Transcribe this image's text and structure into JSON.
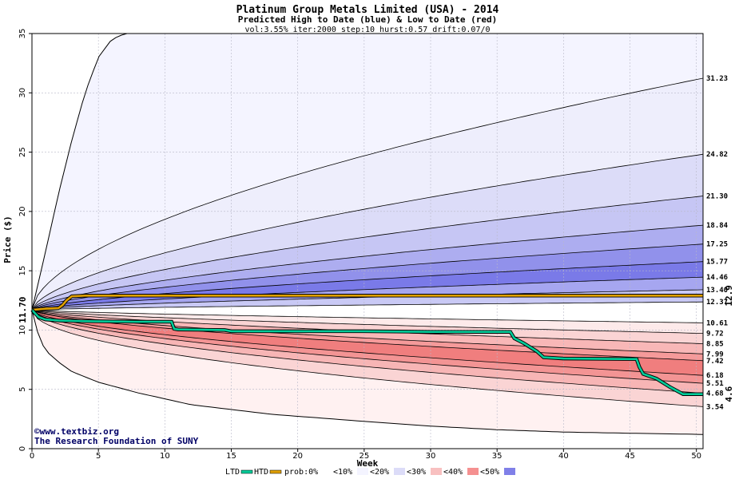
{
  "chart_data": {
    "type": "area",
    "title": "Platinum Group Metals Limited (USA) - 2014",
    "subtitle": "Predicted High to Date (blue) &  Low to Date (red)",
    "params": "vol:3.55% iter:2000 step:10 hurst:0.57 drift:0.07/0",
    "xlabel": "Week",
    "ylabel": "Price ($)",
    "xlim": [
      0,
      50.5
    ],
    "ylim": [
      0,
      35
    ],
    "x_ticks": [
      0,
      5,
      10,
      15,
      20,
      25,
      30,
      35,
      40,
      45,
      50
    ],
    "y_ticks": [
      0,
      5,
      10,
      15,
      20,
      25,
      30,
      35
    ],
    "start_price": "11.70",
    "start_value": 11.7,
    "htd_end_label": "12.9",
    "ltd_end_label": "4.6",
    "grid": true,
    "high_quantiles": [
      {
        "label": "31.23",
        "end": 31.23,
        "power": 0.58
      },
      {
        "label": "24.82",
        "end": 24.82,
        "power": 0.62
      },
      {
        "label": "21.30",
        "end": 21.3,
        "power": 0.64
      },
      {
        "label": "18.84",
        "end": 18.84,
        "power": 0.65
      },
      {
        "label": "17.25",
        "end": 17.25,
        "power": 0.66
      },
      {
        "label": "15.77",
        "end": 15.77,
        "power": 0.67
      },
      {
        "label": "14.46",
        "end": 14.46,
        "power": 0.68
      },
      {
        "label": "13.40",
        "end": 13.4,
        "power": 0.68
      },
      {
        "label": "12.37",
        "end": 12.37,
        "power": 0.7
      }
    ],
    "low_quantiles": [
      {
        "label": "10.61",
        "end": 10.61,
        "power": 0.7
      },
      {
        "label": "9.72",
        "end": 9.72,
        "power": 0.68
      },
      {
        "label": "8.85",
        "end": 8.85,
        "power": 0.66
      },
      {
        "label": "7.99",
        "end": 7.99,
        "power": 0.64
      },
      {
        "label": "7.42",
        "end": 7.42,
        "power": 0.63
      },
      {
        "label": "6.18",
        "end": 6.18,
        "power": 0.6
      },
      {
        "label": "5.51",
        "end": 5.51,
        "power": 0.58
      },
      {
        "label": "4.68",
        "end": 4.68,
        "power": 0.55
      },
      {
        "label": "3.54",
        "end": 3.54,
        "power": 0.5
      }
    ],
    "max_envelope": [
      [
        0,
        11.7
      ],
      [
        1,
        16.5
      ],
      [
        2,
        21.5
      ],
      [
        3,
        26
      ],
      [
        4,
        30
      ],
      [
        5,
        33
      ],
      [
        6,
        34.5
      ],
      [
        7,
        35
      ]
    ],
    "min_envelope": [
      [
        0,
        11.7
      ],
      [
        0.5,
        9.5
      ],
      [
        1,
        8.3
      ],
      [
        2,
        7.3
      ],
      [
        3,
        6.5
      ],
      [
        5,
        5.6
      ],
      [
        8,
        4.7
      ],
      [
        12,
        3.7
      ],
      [
        18,
        2.9
      ],
      [
        25,
        2.3
      ],
      [
        30,
        1.9
      ],
      [
        35,
        1.6
      ],
      [
        40,
        1.4
      ],
      [
        45,
        1.3
      ],
      [
        50.5,
        1.2
      ]
    ],
    "htd": [
      [
        0,
        11.7
      ],
      [
        1,
        11.8
      ],
      [
        2,
        11.85
      ],
      [
        2.3,
        12.1
      ],
      [
        2.6,
        12.5
      ],
      [
        3,
        12.85
      ],
      [
        4,
        12.9
      ],
      [
        50.5,
        12.9
      ]
    ],
    "ltd": [
      [
        0,
        11.7
      ],
      [
        0.5,
        11.1
      ],
      [
        1,
        10.9
      ],
      [
        2,
        10.8
      ],
      [
        4,
        10.75
      ],
      [
        8,
        10.7
      ],
      [
        10.5,
        10.7
      ],
      [
        10.7,
        10.1
      ],
      [
        11,
        10.05
      ],
      [
        14.5,
        10.0
      ],
      [
        15,
        9.9
      ],
      [
        20,
        9.9
      ],
      [
        25,
        9.9
      ],
      [
        30,
        9.85
      ],
      [
        36,
        9.85
      ],
      [
        36.3,
        9.3
      ],
      [
        37,
        8.9
      ],
      [
        38,
        8.2
      ],
      [
        38.5,
        7.7
      ],
      [
        40,
        7.6
      ],
      [
        45.5,
        7.55
      ],
      [
        45.7,
        6.9
      ],
      [
        46,
        6.3
      ],
      [
        47,
        5.9
      ],
      [
        48,
        5.2
      ],
      [
        49,
        4.6
      ],
      [
        50.5,
        4.6
      ]
    ],
    "colors": {
      "high_bands": [
        "#eeeefc",
        "#dcdcf8",
        "#c6c6f4",
        "#adadf0",
        "#9191eb",
        "#7a7ae8",
        "#a6a6f0",
        "#c9c9f5",
        "#e0e0fa"
      ],
      "low_bands": [
        "#fdeaea",
        "#fad4d4",
        "#f8b7b7",
        "#f59a9a",
        "#f07e7e",
        "#f39494",
        "#f7b5b5",
        "#fad4d4",
        "#fdeeee"
      ],
      "outer_high": "#f4f4ff",
      "outer_low": "#fff1f1",
      "htd": "#e0a000",
      "ltd": "#00cc99",
      "start_label": "#006600",
      "htd_label": "#998000",
      "ltd_label": "#009966",
      "credit": "#000066"
    },
    "credit": [
      "©www.textbiz.org",
      "The Research Foundation of SUNY"
    ],
    "legend": {
      "ltd": "LTD",
      "htd": "HTD",
      "prob": "prob:0%",
      "items": [
        {
          "label": "<10%",
          "color": "#f4f4ff"
        },
        {
          "label": "<20%",
          "color": "#dcdcf8"
        },
        {
          "label": "<30%",
          "color": "#f8c0c0"
        },
        {
          "label": "<40%",
          "color": "#f59090"
        },
        {
          "label": "<50%",
          "color": "#8080e8"
        }
      ],
      "first_swatch_color": "#ffffff"
    }
  }
}
